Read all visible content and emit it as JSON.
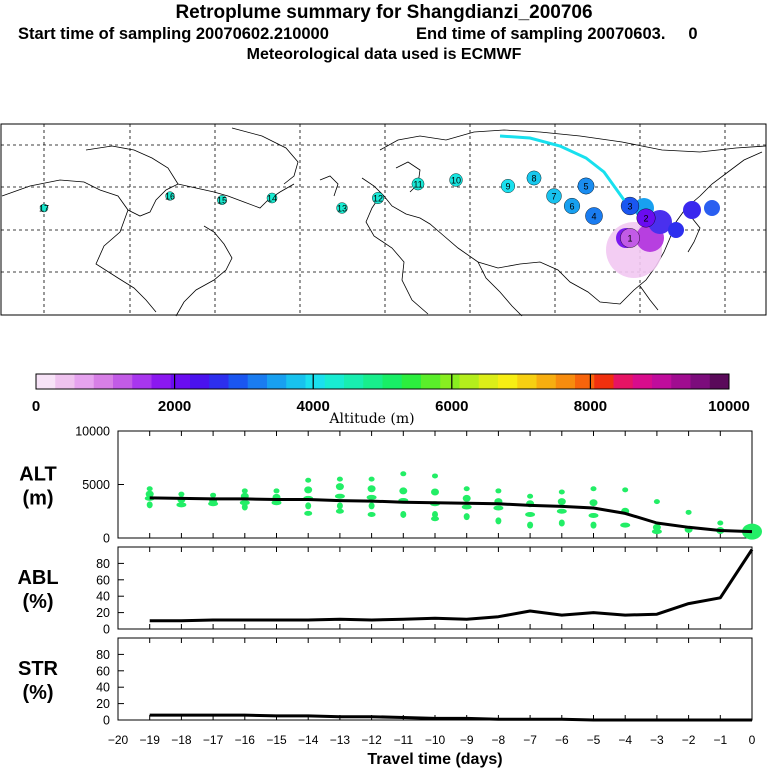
{
  "header": {
    "title": "Retroplume summary for Shangdianzi_200706",
    "start_label": "Start time of sampling 20070602.210000",
    "end_label": "End time of sampling 20070603.     0",
    "met_label": "Meteorological data used is ECMWF"
  },
  "colorbar": {
    "tick_labels": [
      "0",
      "2000",
      "4000",
      "6000",
      "8000",
      "10000"
    ],
    "title": "Altitude (m)",
    "colors": [
      "#f7e3f7",
      "#efc3ef",
      "#e6a3ef",
      "#d77fe6",
      "#c25be6",
      "#a836ee",
      "#8b18f0",
      "#6a0cf0",
      "#4a12ee",
      "#2d2fee",
      "#1a56f0",
      "#1a7cf0",
      "#18a0f0",
      "#18c2ee",
      "#1ae0ee",
      "#18ecd2",
      "#18eeb0",
      "#18ee8c",
      "#18ee66",
      "#2cee3e",
      "#5aee2a",
      "#88ee20",
      "#b4ee1c",
      "#dcee18",
      "#f7ee14",
      "#f7d012",
      "#f7ae10",
      "#f78c0e",
      "#f7640c",
      "#f0300e",
      "#e61464",
      "#d80c8c",
      "#c00c9c",
      "#a00c90",
      "#7c0c7c",
      "#5a0a5a"
    ]
  },
  "map": {
    "plume_points": [
      {
        "label": "17",
        "color": "#18e8ce"
      },
      {
        "label": "16",
        "color": "#18e8ce"
      },
      {
        "label": "15",
        "color": "#18e8ce"
      },
      {
        "label": "14",
        "color": "#18ecd2"
      },
      {
        "label": "13",
        "color": "#18ecd2"
      },
      {
        "label": "12",
        "color": "#18e8d6"
      },
      {
        "label": "11",
        "color": "#18e8d6"
      },
      {
        "label": "10",
        "color": "#18e4e0"
      },
      {
        "label": "9",
        "color": "#1ae0ee"
      },
      {
        "label": "8",
        "color": "#18c8ee"
      },
      {
        "label": "7",
        "color": "#18c2ee"
      },
      {
        "label": "6",
        "color": "#18a0f0"
      },
      {
        "label": "5",
        "color": "#1a8cf0"
      },
      {
        "label": "4",
        "color": "#1a7cf0"
      },
      {
        "label": "3",
        "color": "#1a56f0"
      },
      {
        "label": "2",
        "color": "#6a0cf0"
      },
      {
        "label": "1",
        "color": "#c25be6"
      }
    ]
  },
  "chart_data": [
    {
      "type": "line",
      "panel": "ALT",
      "ylabel": "ALT\n(m)",
      "ylim": [
        0,
        10000
      ],
      "yticks": [
        0,
        5000,
        10000
      ],
      "x": [
        -19,
        -18,
        -17,
        -16,
        -15,
        -14,
        -13,
        -12,
        -11,
        -10,
        -9,
        -8,
        -7,
        -6,
        -5,
        -4,
        -3,
        -2,
        -1,
        0
      ],
      "series": [
        {
          "name": "median altitude",
          "values": [
            3750,
            3700,
            3650,
            3650,
            3600,
            3600,
            3500,
            3450,
            3350,
            3300,
            3250,
            3200,
            3050,
            2950,
            2800,
            2300,
            1400,
            1000,
            700,
            600
          ]
        }
      ],
      "scatter": [
        {
          "x": -19,
          "y": [
            4600,
            4100,
            3700,
            3100
          ]
        },
        {
          "x": -18,
          "y": [
            4100,
            3600,
            3100
          ]
        },
        {
          "x": -17,
          "y": [
            4000,
            3500,
            3200
          ]
        },
        {
          "x": -16,
          "y": [
            4400,
            3900,
            3300,
            2900
          ]
        },
        {
          "x": -15,
          "y": [
            4400,
            3800,
            3300
          ]
        },
        {
          "x": -14,
          "y": [
            5400,
            4500,
            3700,
            3000,
            2300
          ]
        },
        {
          "x": -13,
          "y": [
            5500,
            4800,
            3900,
            3000,
            2500
          ]
        },
        {
          "x": -12,
          "y": [
            5500,
            4600,
            3800,
            3000,
            2200
          ]
        },
        {
          "x": -11,
          "y": [
            6000,
            4400,
            3500,
            2200
          ]
        },
        {
          "x": -10,
          "y": [
            5800,
            4300,
            3200,
            2200,
            1800
          ]
        },
        {
          "x": -9,
          "y": [
            4600,
            3700,
            2900,
            2000
          ]
        },
        {
          "x": -8,
          "y": [
            4400,
            3400,
            2800,
            1600
          ]
        },
        {
          "x": -7,
          "y": [
            3900,
            3200,
            2200,
            1200
          ]
        },
        {
          "x": -6,
          "y": [
            4300,
            3400,
            2500,
            1400
          ]
        },
        {
          "x": -5,
          "y": [
            4600,
            3300,
            2100,
            1200
          ]
        },
        {
          "x": -4,
          "y": [
            4500,
            2500,
            1200
          ]
        },
        {
          "x": -3,
          "y": [
            3400,
            1000,
            600
          ]
        },
        {
          "x": -2,
          "y": [
            2400,
            800
          ]
        },
        {
          "x": -1,
          "y": [
            1400,
            700
          ]
        },
        {
          "x": 0,
          "y": [
            600
          ]
        }
      ]
    },
    {
      "type": "line",
      "panel": "ABL",
      "ylabel": "ABL\n(%)",
      "ylim": [
        0,
        100
      ],
      "yticks": [
        0,
        20,
        40,
        60,
        80
      ],
      "x": [
        -19,
        -18,
        -17,
        -16,
        -15,
        -14,
        -13,
        -12,
        -11,
        -10,
        -9,
        -8,
        -7,
        -6,
        -5,
        -4,
        -3,
        -2,
        -1,
        0
      ],
      "values": [
        10,
        10,
        11,
        11,
        11,
        11,
        12,
        11,
        12,
        13,
        12,
        15,
        22,
        17,
        20,
        17,
        18,
        31,
        38,
        97
      ]
    },
    {
      "type": "line",
      "panel": "STR",
      "ylabel": "STR\n(%)",
      "ylim": [
        0,
        100
      ],
      "yticks": [
        0,
        20,
        40,
        60,
        80
      ],
      "x": [
        -19,
        -18,
        -17,
        -16,
        -15,
        -14,
        -13,
        -12,
        -11,
        -10,
        -9,
        -8,
        -7,
        -6,
        -5,
        -4,
        -3,
        -2,
        -1,
        0
      ],
      "values": [
        6,
        6,
        6,
        6,
        5,
        5,
        4,
        4,
        3,
        2,
        2,
        1,
        1,
        1,
        0,
        0,
        0,
        0,
        0,
        0
      ]
    }
  ],
  "xaxis": {
    "ticks": [
      -20,
      -19,
      -18,
      -17,
      -16,
      -15,
      -14,
      -13,
      -12,
      -11,
      -10,
      -9,
      -8,
      -7,
      -6,
      -5,
      -4,
      -3,
      -2,
      -1,
      0
    ],
    "tick_labels": [
      "−20",
      "−19",
      "−18",
      "−17",
      "−16",
      "−15",
      "−14",
      "−13",
      "−12",
      "−11",
      "−10",
      "−9",
      "−8",
      "−7",
      "−6",
      "−5",
      "−4",
      "−3",
      "−2",
      "−1",
      "0"
    ],
    "label": "Travel time (days)"
  },
  "colors": {
    "line": "#000000",
    "scatter": "#22ee66"
  }
}
